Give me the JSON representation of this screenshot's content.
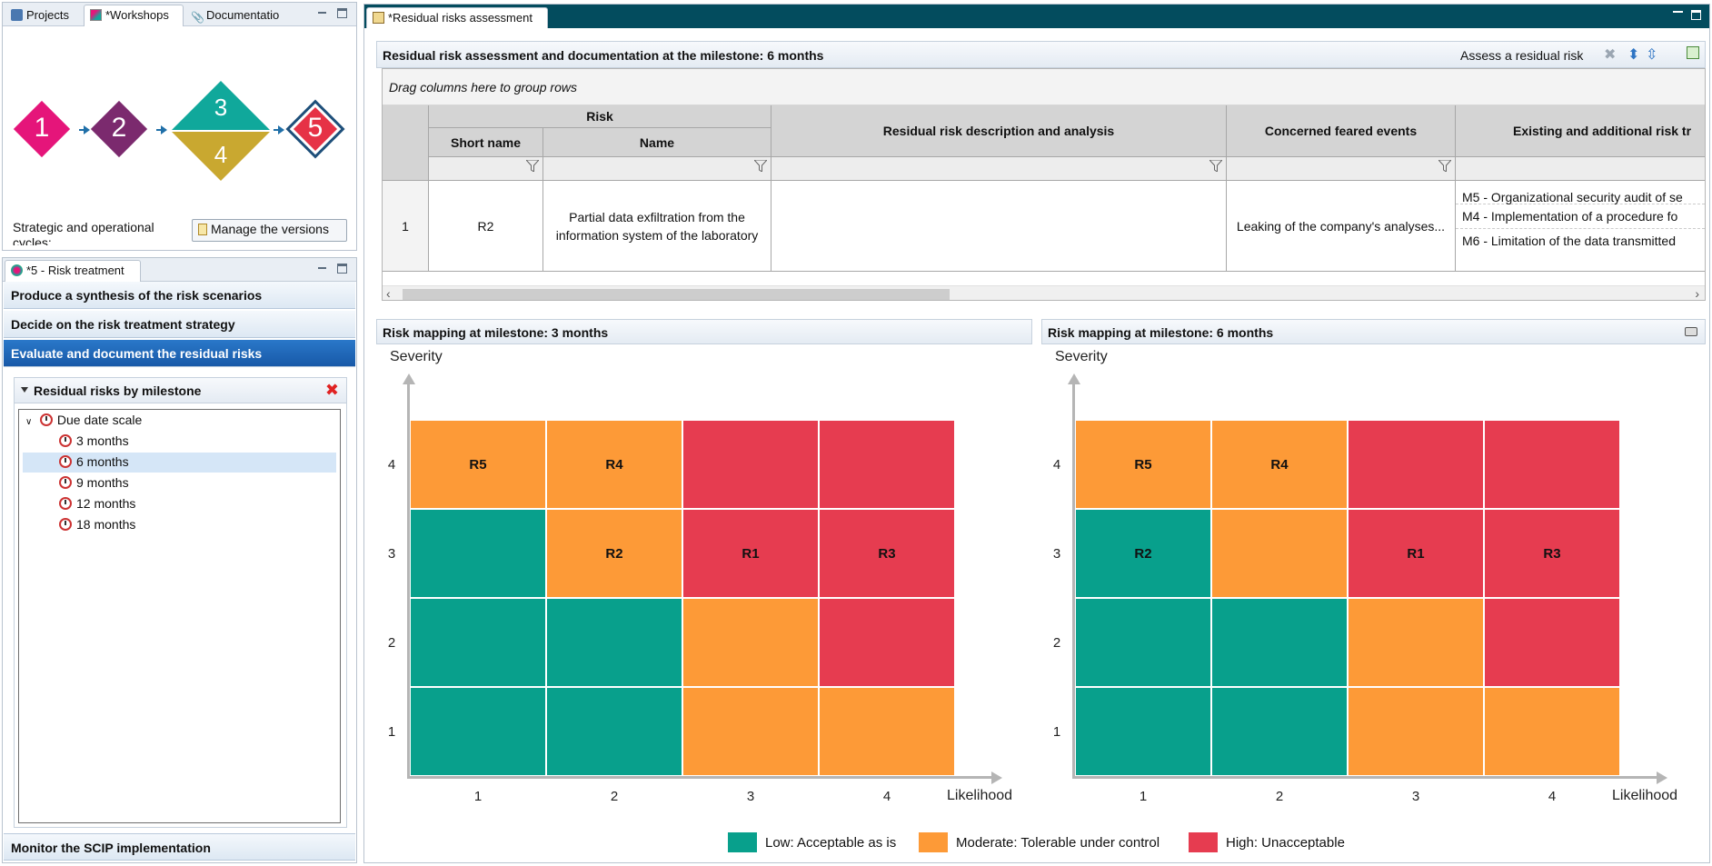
{
  "workshops_panel": {
    "tabs": [
      {
        "label": "Projects",
        "icon": "project-icon"
      },
      {
        "label": "*Workshops",
        "icon": "workshop-icon",
        "active": true
      },
      {
        "label": "Documentatio",
        "icon": "documentation-icon"
      }
    ],
    "diamonds": [
      {
        "label": "1",
        "color": "#e5157a"
      },
      {
        "label": "2",
        "color": "#7b2a6e"
      },
      {
        "label": "3",
        "color": "#10a89b"
      },
      {
        "label": "4",
        "color": "#c9a830"
      },
      {
        "label": "5",
        "color": "#e63246",
        "border": "#1e4f7a"
      }
    ],
    "cycles_text": "Strategic and operational cycles:",
    "manage_versions_label": "Manage the versions"
  },
  "risk_treatment_panel": {
    "tab_label": "*5 - Risk treatment",
    "steps": [
      {
        "label": "Produce a synthesis of the risk scenarios",
        "active": false
      },
      {
        "label": "Decide on the risk treatment strategy",
        "active": false
      },
      {
        "label": "Evaluate and document the residual risks",
        "active": true
      }
    ],
    "residual_section": {
      "title": "Residual risks by milestone",
      "tree_root": "Due date scale",
      "milestones": [
        {
          "label": "3 months",
          "selected": false
        },
        {
          "label": "6 months",
          "selected": true
        },
        {
          "label": "9 months",
          "selected": false
        },
        {
          "label": "12 months",
          "selected": false
        },
        {
          "label": "18 months",
          "selected": false
        }
      ]
    },
    "bottom_step": "Monitor the SCIP implementation"
  },
  "main": {
    "tab_label": "*Residual risks assessment",
    "header": {
      "title": "Residual risk assessment and documentation at the milestone: 6 months",
      "assess_label": "Assess a residual risk"
    },
    "table": {
      "group_hint": "Drag columns here to group rows",
      "group_header": "Risk",
      "columns": {
        "short_name": "Short name",
        "name": "Name",
        "description": "Residual risk description and analysis",
        "feared_events": "Concerned feared events",
        "measures": "Existing and additional risk tr"
      },
      "rows": [
        {
          "index": "1",
          "short_name": "R2",
          "name": "Partial data exfiltration from the information system of the laboratory",
          "description": "",
          "feared_events": "Leaking of the company's analyses...",
          "measures": [
            "M5 - Organizational security audit of se",
            "M4 - Implementation of a procedure fo",
            "M6 - Limitation of the data transmitted"
          ]
        }
      ]
    },
    "maps": [
      {
        "title": "Risk mapping at milestone: 3 months",
        "y_label": "Severity",
        "x_label": "Likelihood",
        "x_ticks": [
          "1",
          "2",
          "3",
          "4"
        ],
        "y_ticks": [
          "4",
          "3",
          "2",
          "1"
        ],
        "grid": [
          [
            "orange",
            "orange",
            "red",
            "red"
          ],
          [
            "green",
            "orange",
            "red",
            "red"
          ],
          [
            "green",
            "green",
            "orange",
            "red"
          ],
          [
            "green",
            "green",
            "orange",
            "orange"
          ]
        ],
        "labels": [
          [
            "R5",
            "R4",
            "",
            ""
          ],
          [
            "",
            "R2",
            "R1",
            "R3"
          ],
          [
            "",
            "",
            "",
            ""
          ],
          [
            "",
            "",
            "",
            ""
          ]
        ]
      },
      {
        "title": "Risk mapping at milestone: 6 months",
        "y_label": "Severity",
        "x_label": "Likelihood",
        "x_ticks": [
          "1",
          "2",
          "3",
          "4"
        ],
        "y_ticks": [
          "4",
          "3",
          "2",
          "1"
        ],
        "grid": [
          [
            "orange",
            "orange",
            "red",
            "red"
          ],
          [
            "green",
            "orange",
            "red",
            "red"
          ],
          [
            "green",
            "green",
            "orange",
            "red"
          ],
          [
            "green",
            "green",
            "orange",
            "orange"
          ]
        ],
        "labels": [
          [
            "R5",
            "R4",
            "",
            ""
          ],
          [
            "R2",
            "",
            "R1",
            "R3"
          ],
          [
            "",
            "",
            "",
            ""
          ],
          [
            "",
            "",
            "",
            ""
          ]
        ]
      }
    ],
    "colors": {
      "green": "#08a08c",
      "orange": "#fd9a37",
      "red": "#e63c50"
    },
    "legend": [
      {
        "label": "Low: Acceptable as is",
        "color": "#08a08c"
      },
      {
        "label": "Moderate: Tolerable under control",
        "color": "#fd9a37"
      },
      {
        "label": "High: Unacceptable",
        "color": "#e63c50"
      }
    ]
  }
}
